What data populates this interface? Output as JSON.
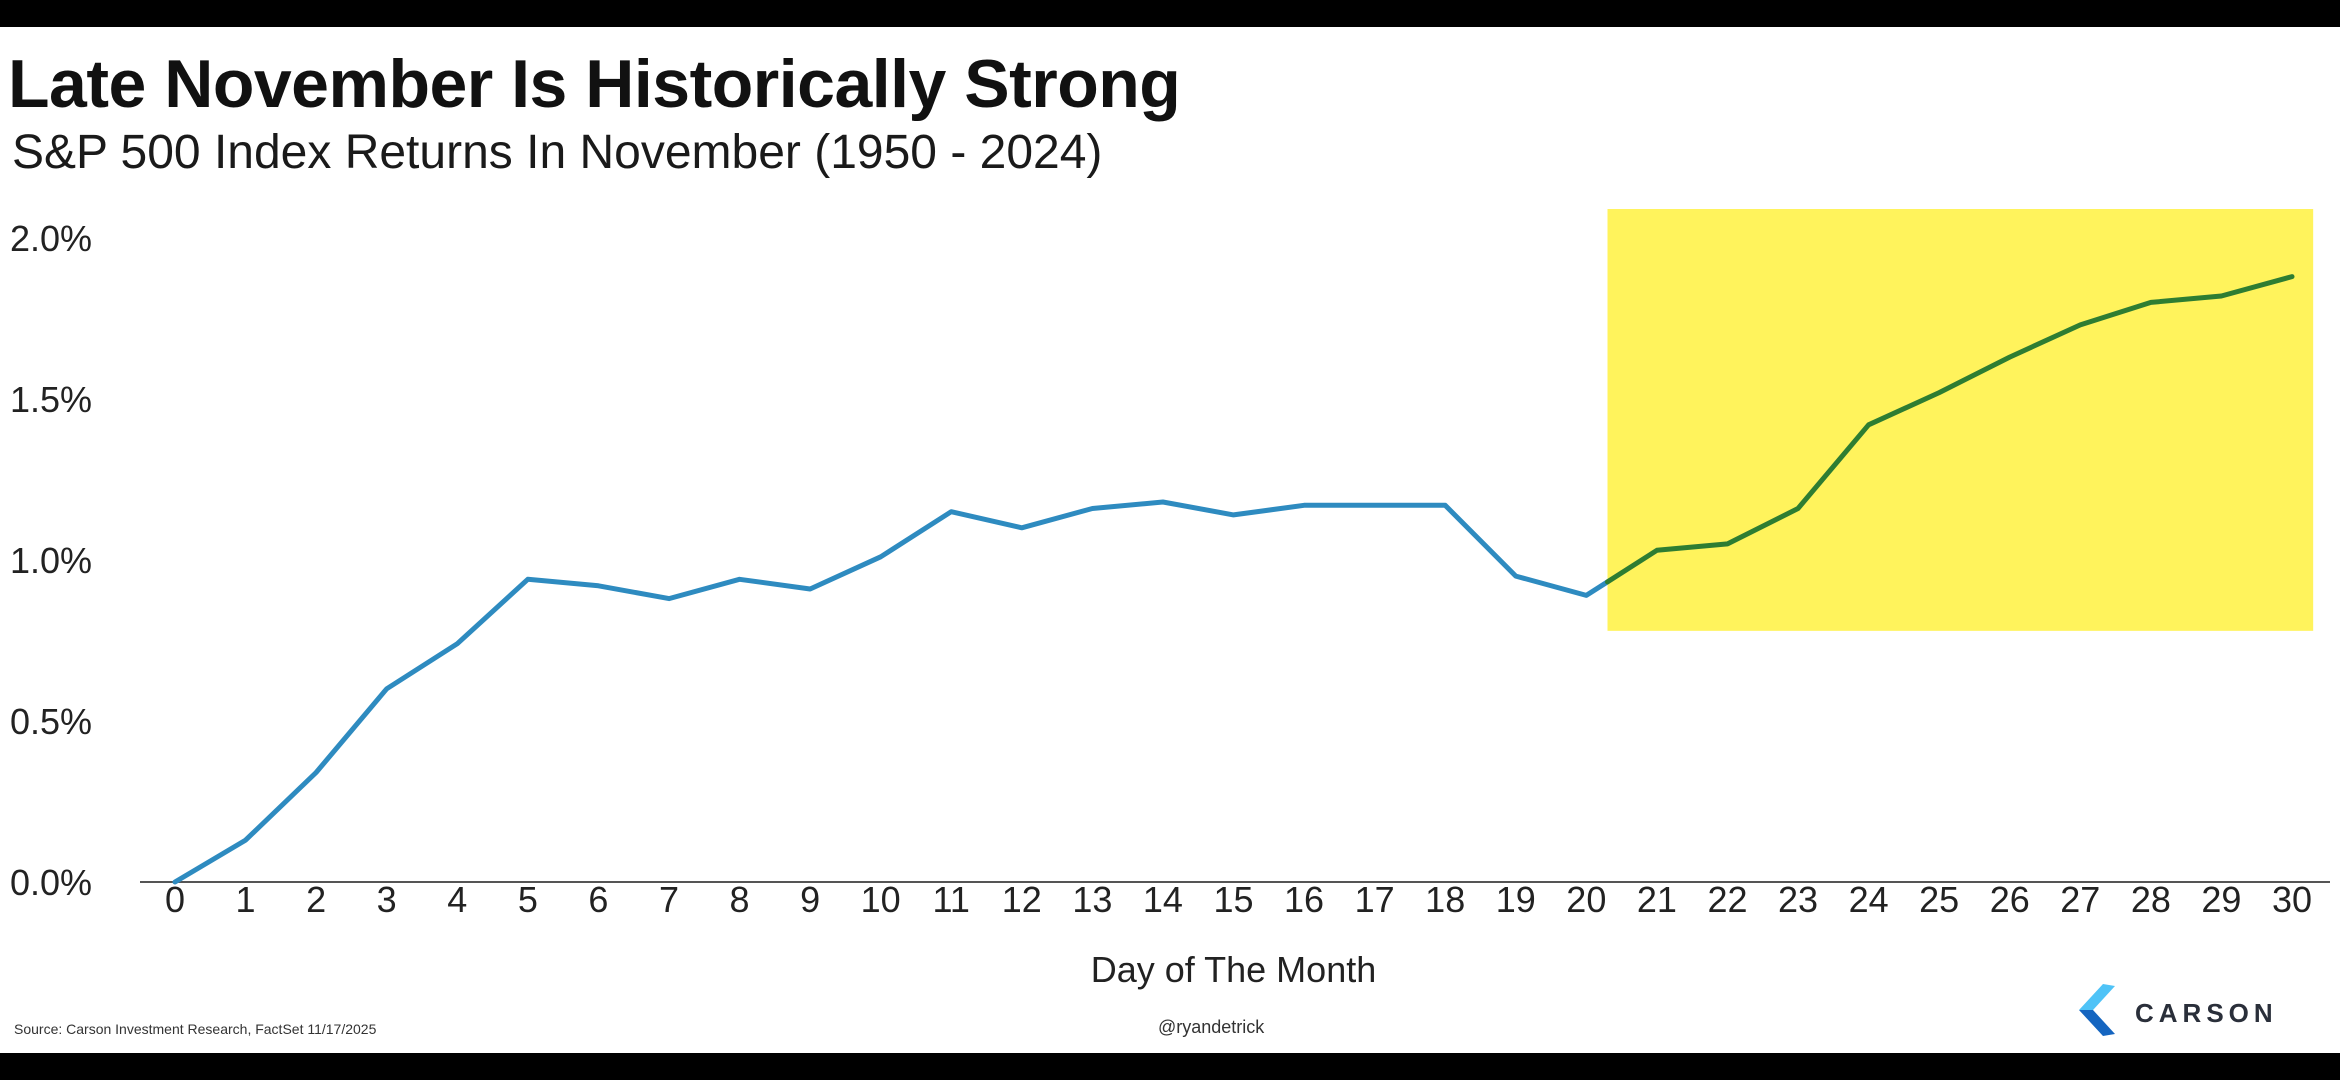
{
  "header": {
    "title": "Late November Is Historically Strong",
    "subtitle": "S&P 500 Index Returns In November (1950 - 2024)"
  },
  "footer": {
    "source": "Source: Carson Investment Research, FactSet 11/17/2025",
    "handle": "@ryandetrick",
    "brand": "CARSON"
  },
  "colors": {
    "line": "#2E8BC0",
    "highlight_line": "#2E7D32",
    "highlight_fill": "#FFF35C",
    "axis": "#555555",
    "brand_icon_light": "#4FC3F7",
    "brand_icon_dark": "#1565C0"
  },
  "chart_data": {
    "type": "line",
    "title": "Late November Is Historically Strong",
    "subtitle": "S&P 500 Index Returns In November (1950 - 2024)",
    "xlabel": "Day of The Month",
    "ylabel": "",
    "x": [
      0,
      1,
      2,
      3,
      4,
      5,
      6,
      7,
      8,
      9,
      10,
      11,
      12,
      13,
      14,
      15,
      16,
      17,
      18,
      19,
      20,
      21,
      22,
      23,
      24,
      25,
      26,
      27,
      28,
      29,
      30
    ],
    "series": [
      {
        "values": [
          0.0,
          0.13,
          0.34,
          0.6,
          0.74,
          0.94,
          0.92,
          0.88,
          0.94,
          0.91,
          1.01,
          1.15,
          1.1,
          1.16,
          1.18,
          1.14,
          1.17,
          1.17,
          1.17,
          0.95,
          0.89,
          1.03,
          1.05,
          1.16,
          1.42,
          1.52,
          1.63,
          1.73,
          1.8,
          1.82,
          1.88
        ]
      }
    ],
    "ylim": [
      0,
      2.0
    ],
    "yticks": [
      0.0,
      0.5,
      1.0,
      1.5,
      2.0
    ],
    "ytick_labels": [
      "0.0%",
      "0.5%",
      "1.0%",
      "1.5%",
      "2.0%"
    ],
    "xtick_labels": [
      "0",
      "1",
      "2",
      "3",
      "4",
      "5",
      "6",
      "7",
      "8",
      "9",
      "10",
      "11",
      "12",
      "13",
      "14",
      "15",
      "16",
      "17",
      "18",
      "19",
      "20",
      "21",
      "22",
      "23",
      "24",
      "25",
      "26",
      "27",
      "28",
      "29",
      "30"
    ],
    "highlight": {
      "x_start": 20.3,
      "x_end": 30.3,
      "y_low": 0.78,
      "y_high": 2.09
    },
    "grid": false,
    "legend": "none"
  }
}
